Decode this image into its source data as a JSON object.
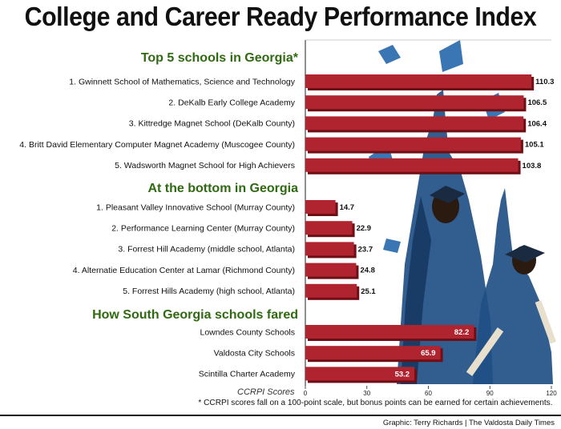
{
  "chart_data": {
    "type": "bar",
    "orientation": "horizontal",
    "title": "College and Career Ready Performance Index",
    "xlabel": "CCRPI Scores",
    "xlim": [
      0,
      120
    ],
    "xticks": [
      0,
      30,
      60,
      90,
      120
    ],
    "groups": [
      {
        "heading": "Top 5 schools in Georgia*",
        "categories": [
          "1. Gwinnett School of Mathematics, Science and Technology",
          "2. DeKalb Early College Academy",
          "3. Kittredge Magnet School (DeKalb County)",
          "4. Britt David Elementary Computer Magnet Academy (Muscogee County)",
          "5. Wadsworth Magnet School for High Achievers"
        ],
        "values": [
          110.3,
          106.5,
          106.4,
          105.1,
          103.8
        ]
      },
      {
        "heading": "At the bottom in Georgia",
        "categories": [
          "1. Pleasant Valley Innovative School (Murray County)",
          "2. Performance Learning Center (Murray County)",
          "3. Forrest Hill Academy (middle school, Atlanta)",
          "4. Alternatie Education Center at Lamar (Richmond County)",
          "5. Forrest Hills Academy (high school, Atlanta)"
        ],
        "values": [
          14.7,
          22.9,
          23.7,
          24.8,
          25.1
        ]
      },
      {
        "heading": "How South Georgia schools fared",
        "categories": [
          "Lowndes County Schools",
          "Valdosta City Schools",
          "Scintilla Charter Academy"
        ],
        "values": [
          82.2,
          65.9,
          53.2
        ]
      }
    ],
    "footnote": "* CCRPI scores fall on a 100-point scale, but bonus points can be earned for certain achievements.",
    "credit": "Graphic: Terry Richards | The Valdosta Daily Times",
    "colors": {
      "bar": "#b0242f",
      "bar_shadow": "#6e0f16",
      "heading": "#2f6a10",
      "graduate": "#1f4f86"
    }
  }
}
